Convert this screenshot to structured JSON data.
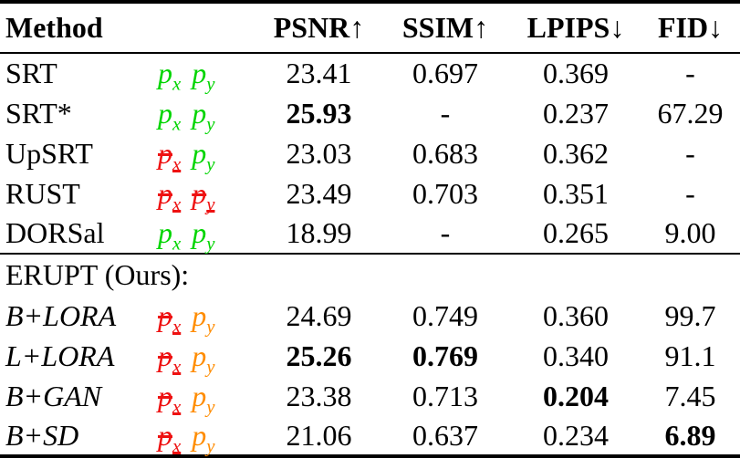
{
  "colors": {
    "pose_given_green": "#00d500",
    "pose_dropped_red": "#ee1111",
    "pose_predicted_orange": "#ff8c00",
    "rule_black": "#000000"
  },
  "table": {
    "headers": [
      "Method",
      "PSNR↑",
      "SSIM↑",
      "LPIPS↓",
      "FID↓"
    ],
    "section_label": "ERUPT (Ours):",
    "rows": [
      {
        "group": "baselines",
        "method": "SRT",
        "italic": false,
        "pose": [
          {
            "base": "p",
            "sub": "x",
            "color": "#00d500",
            "struck": false
          },
          {
            "base": "p",
            "sub": "y",
            "color": "#00d500",
            "struck": false
          }
        ],
        "values": [
          {
            "text": "23.41",
            "bold": false
          },
          {
            "text": "0.697",
            "bold": false
          },
          {
            "text": "0.369",
            "bold": false
          },
          {
            "text": "-",
            "bold": false
          }
        ]
      },
      {
        "group": "baselines",
        "method": "SRT*",
        "italic": false,
        "pose": [
          {
            "base": "p",
            "sub": "x",
            "color": "#00d500",
            "struck": false
          },
          {
            "base": "p",
            "sub": "y",
            "color": "#00d500",
            "struck": false
          }
        ],
        "values": [
          {
            "text": "25.93",
            "bold": true
          },
          {
            "text": "-",
            "bold": false
          },
          {
            "text": "0.237",
            "bold": false
          },
          {
            "text": "67.29",
            "bold": false
          }
        ]
      },
      {
        "group": "baselines",
        "method": "UpSRT",
        "italic": false,
        "pose": [
          {
            "base": "p",
            "sub": "x",
            "color": "#ee1111",
            "struck": true
          },
          {
            "base": "p",
            "sub": "y",
            "color": "#00d500",
            "struck": false
          }
        ],
        "values": [
          {
            "text": "23.03",
            "bold": false
          },
          {
            "text": "0.683",
            "bold": false
          },
          {
            "text": "0.362",
            "bold": false
          },
          {
            "text": "-",
            "bold": false
          }
        ]
      },
      {
        "group": "baselines",
        "method": "RUST",
        "italic": false,
        "pose": [
          {
            "base": "p",
            "sub": "x",
            "color": "#ee1111",
            "struck": true
          },
          {
            "base": "p",
            "sub": "y",
            "color": "#ee1111",
            "struck": true
          }
        ],
        "values": [
          {
            "text": "23.49",
            "bold": false
          },
          {
            "text": "0.703",
            "bold": false
          },
          {
            "text": "0.351",
            "bold": false
          },
          {
            "text": "-",
            "bold": false
          }
        ]
      },
      {
        "group": "baselines",
        "method": "DORSal",
        "italic": false,
        "pose": [
          {
            "base": "p",
            "sub": "x",
            "color": "#00d500",
            "struck": false
          },
          {
            "base": "p",
            "sub": "y",
            "color": "#00d500",
            "struck": false
          }
        ],
        "values": [
          {
            "text": "18.99",
            "bold": false
          },
          {
            "text": "-",
            "bold": false
          },
          {
            "text": "0.265",
            "bold": false
          },
          {
            "text": "9.00",
            "bold": false
          }
        ]
      },
      {
        "group": "ours",
        "method": "B+LORA",
        "italic": true,
        "pose": [
          {
            "base": "p",
            "sub": "x",
            "color": "#ee1111",
            "struck": true
          },
          {
            "base": "p",
            "sub": "y",
            "color": "#ff8c00",
            "struck": false
          }
        ],
        "values": [
          {
            "text": "24.69",
            "bold": false
          },
          {
            "text": "0.749",
            "bold": false
          },
          {
            "text": "0.360",
            "bold": false
          },
          {
            "text": "99.7",
            "bold": false
          }
        ]
      },
      {
        "group": "ours",
        "method": "L+LORA",
        "italic": true,
        "pose": [
          {
            "base": "p",
            "sub": "x",
            "color": "#ee1111",
            "struck": true
          },
          {
            "base": "p",
            "sub": "y",
            "color": "#ff8c00",
            "struck": false
          }
        ],
        "values": [
          {
            "text": "25.26",
            "bold": true
          },
          {
            "text": "0.769",
            "bold": true
          },
          {
            "text": "0.340",
            "bold": false
          },
          {
            "text": "91.1",
            "bold": false
          }
        ]
      },
      {
        "group": "ours",
        "method": "B+GAN",
        "italic": true,
        "pose": [
          {
            "base": "p",
            "sub": "x",
            "color": "#ee1111",
            "struck": true
          },
          {
            "base": "p",
            "sub": "y",
            "color": "#ff8c00",
            "struck": false
          }
        ],
        "values": [
          {
            "text": "23.38",
            "bold": false
          },
          {
            "text": "0.713",
            "bold": false
          },
          {
            "text": "0.204",
            "bold": true
          },
          {
            "text": "7.45",
            "bold": false
          }
        ]
      },
      {
        "group": "ours",
        "method": "B+SD",
        "italic": true,
        "pose": [
          {
            "base": "p",
            "sub": "x",
            "color": "#ee1111",
            "struck": true
          },
          {
            "base": "p",
            "sub": "y",
            "color": "#ff8c00",
            "struck": false
          }
        ],
        "values": [
          {
            "text": "21.06",
            "bold": false
          },
          {
            "text": "0.637",
            "bold": false
          },
          {
            "text": "0.234",
            "bold": false
          },
          {
            "text": "6.89",
            "bold": true
          }
        ]
      }
    ]
  }
}
